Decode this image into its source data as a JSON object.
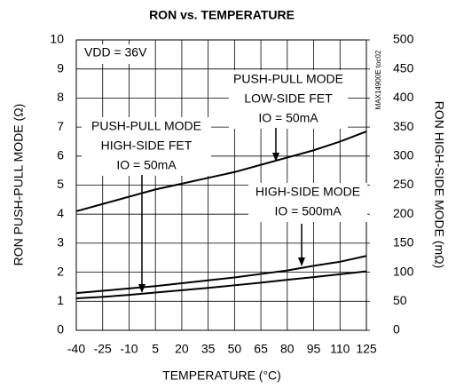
{
  "chart_data": {
    "type": "line",
    "title": "RON vs. TEMPERATURE",
    "xlabel": "TEMPERATURE (°C)",
    "ylabel": "RON PUSH-PULL MODE (Ω)",
    "y2label": "RON HIGH-SIDE MODE (mΩ)",
    "x": [
      -40,
      -25,
      -10,
      5,
      20,
      35,
      50,
      65,
      80,
      95,
      110,
      125
    ],
    "xlim": [
      -40,
      125
    ],
    "xticks": [
      -40,
      -25,
      -10,
      5,
      20,
      35,
      50,
      65,
      80,
      95,
      110,
      125
    ],
    "ylim": [
      0,
      10
    ],
    "yticks": [
      0,
      1,
      2,
      3,
      4,
      5,
      6,
      7,
      8,
      9,
      10
    ],
    "y2lim": [
      0,
      500
    ],
    "y2ticks": [
      0,
      50,
      100,
      150,
      200,
      250,
      300,
      350,
      400,
      450,
      500
    ],
    "grid": true,
    "series": [
      {
        "name": "PUSH-PULL MODE LOW-SIDE FET",
        "color": "#000000",
        "values": [
          4.1,
          4.35,
          4.6,
          4.85,
          5.05,
          5.25,
          5.45,
          5.7,
          5.95,
          6.2,
          6.5,
          6.85
        ]
      },
      {
        "name": "PUSH-PULL MODE HIGH-SIDE FET",
        "color": "#000000",
        "values": [
          1.1,
          1.15,
          1.22,
          1.3,
          1.38,
          1.46,
          1.55,
          1.64,
          1.74,
          1.83,
          1.93,
          2.03
        ]
      },
      {
        "name": "HIGH-SIDE MODE",
        "color": "#000000",
        "axis": "y2",
        "values": [
          64,
          68,
          72,
          76,
          81,
          86,
          91,
          97,
          103,
          111,
          118,
          128
        ]
      }
    ],
    "annotations": [
      {
        "lines": [
          "VDD = 36V"
        ]
      },
      {
        "lines": [
          "PUSH-PULL MODE",
          "LOW-SIDE FET",
          "IO = 50mA"
        ]
      },
      {
        "lines": [
          "PUSH-PULL MODE",
          "HIGH-SIDE FET",
          "IO = 50mA"
        ]
      },
      {
        "lines": [
          "HIGH-SIDE MODE",
          "IO = 500mA"
        ]
      },
      {
        "lines": [
          "MAX14900E toc02"
        ]
      }
    ]
  }
}
